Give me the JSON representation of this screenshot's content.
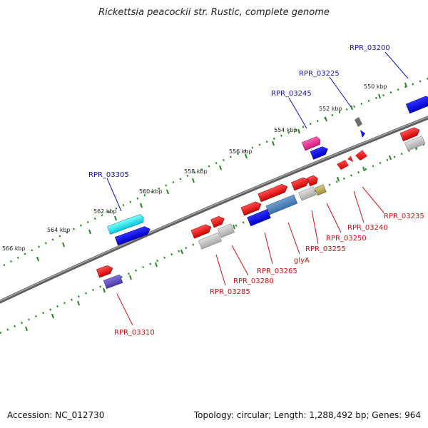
{
  "title": "Rickettsia peacockii str. Rustic, complete genome",
  "footer": {
    "accession": "Accession: NC_012730",
    "summary": "Topology: circular; Length: 1,288,492 bp; Genes: 964"
  },
  "colors": {
    "backbone": "#7a7a7a",
    "tick": "#228b22",
    "label_top": "#1010c0",
    "label_bottom": "#cc1010"
  },
  "kbp_labels": [
    "550 kbp",
    "552 kbp",
    "554 kbp",
    "556 kbp",
    "558 kbp",
    "560 kbp",
    "562 kbp",
    "564 kbp",
    "566 kbp"
  ],
  "top_labels": [
    "RPR_03200",
    "RPR_03225",
    "RPR_03245",
    "RPR_03305"
  ],
  "bottom_labels": [
    "RPR_03235",
    "RPR_03240",
    "RPR_03250",
    "RPR_03255",
    "glyA",
    "RPR_03265",
    "RPR_03280",
    "RPR_03285",
    "RPR_03310"
  ]
}
